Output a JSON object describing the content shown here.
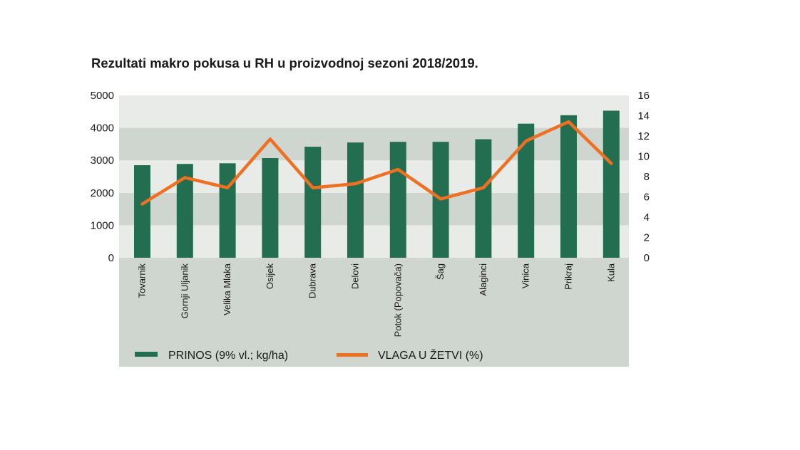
{
  "chart_data": {
    "type": "bar+line",
    "title": "Rezultati makro pokusa u RH u proizvodnoj sezoni 2018/2019.",
    "categories": [
      "Tovarnik",
      "Gornji Uljanik",
      "Velika Mlaka",
      "Osijek",
      "Dubrava",
      "Delovi",
      "Potok (Popovača)",
      "Šag",
      "Alaginci",
      "Vinica",
      "Prikraj",
      "Kula"
    ],
    "series": [
      {
        "name": "PRINOS (9% vl.; kg/ha)",
        "type": "bar",
        "axis": "left",
        "color": "#236e50",
        "values": [
          2850,
          2890,
          2910,
          3070,
          3420,
          3550,
          3570,
          3570,
          3650,
          4130,
          4390,
          4530
        ]
      },
      {
        "name": "VLAGA U ŽETVI (%)",
        "type": "line",
        "axis": "right",
        "color": "#f07022",
        "values": [
          5.3,
          7.9,
          6.9,
          11.7,
          6.9,
          7.3,
          8.7,
          5.8,
          6.9,
          11.5,
          13.4,
          9.3
        ]
      }
    ],
    "y_left": {
      "ylim": [
        0,
        5000
      ],
      "ticks": [
        "0",
        "1000",
        "2000",
        "3000",
        "4000",
        "5000"
      ]
    },
    "y_right": {
      "ylim": [
        0,
        16
      ],
      "ticks": [
        "0",
        "2",
        "4",
        "6",
        "8",
        "10",
        "12",
        "14",
        "16"
      ]
    },
    "legend_position": "bottom",
    "colors": {
      "band_light": "#e8ebe7",
      "band_dark": "#cfd5cf",
      "bar": "#236e50",
      "line": "#f07022"
    }
  }
}
